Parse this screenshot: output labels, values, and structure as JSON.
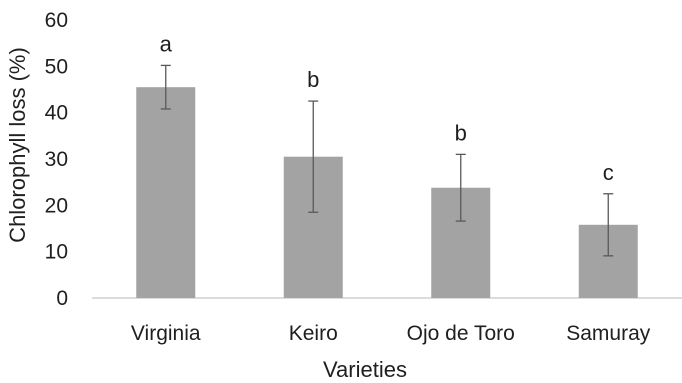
{
  "chart_data": {
    "type": "bar",
    "categories": [
      "Virginia",
      "Keiro",
      "Ojo de Toro",
      "Samuray"
    ],
    "values": [
      45.5,
      30.5,
      23.8,
      15.8
    ],
    "error": [
      4.7,
      12.0,
      7.2,
      6.7
    ],
    "significance": [
      "a",
      "b",
      "b",
      "c"
    ],
    "xlabel": "Varieties",
    "ylabel": "Chlorophyll loss (%)",
    "ylim": [
      0,
      60
    ],
    "yticks": [
      0,
      10,
      20,
      30,
      40,
      50,
      60
    ],
    "grid": false,
    "colors": {
      "bar": "#a3a3a3",
      "errorbar": "#595959",
      "axis": "#d0d0d0",
      "text": "#1f1f1f"
    }
  }
}
